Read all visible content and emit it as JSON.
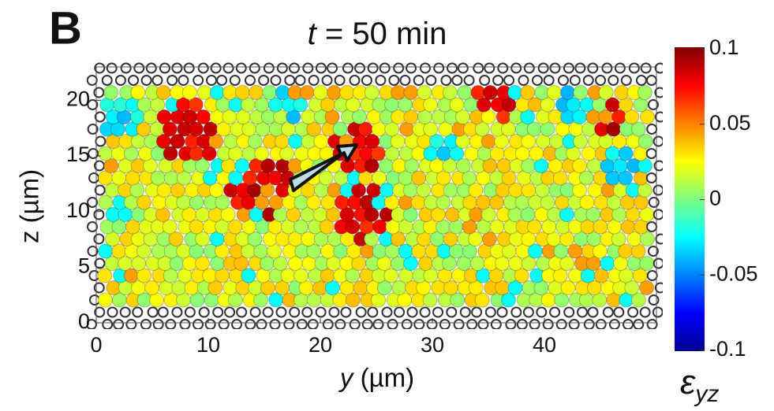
{
  "chart_data": {
    "type": "scatter",
    "panel_label": "B",
    "title": {
      "variable": "t",
      "text": "= 50 min"
    },
    "xlabel": {
      "variable": "y",
      "text": "(µm)"
    },
    "ylabel": "z (µm)",
    "xlim": [
      0,
      50
    ],
    "xticks": [
      0,
      10,
      20,
      30,
      40
    ],
    "ylim": [
      0,
      23
    ],
    "yticks": [
      0,
      5,
      10,
      15,
      20
    ],
    "colorbar": {
      "label": {
        "symbol": "ε",
        "subscript": "yz"
      },
      "lim": [
        -0.1,
        0.1
      ],
      "ticks": [
        0.1,
        0.05,
        0,
        -0.05,
        -0.1
      ],
      "colormap": "jet"
    }
  }
}
